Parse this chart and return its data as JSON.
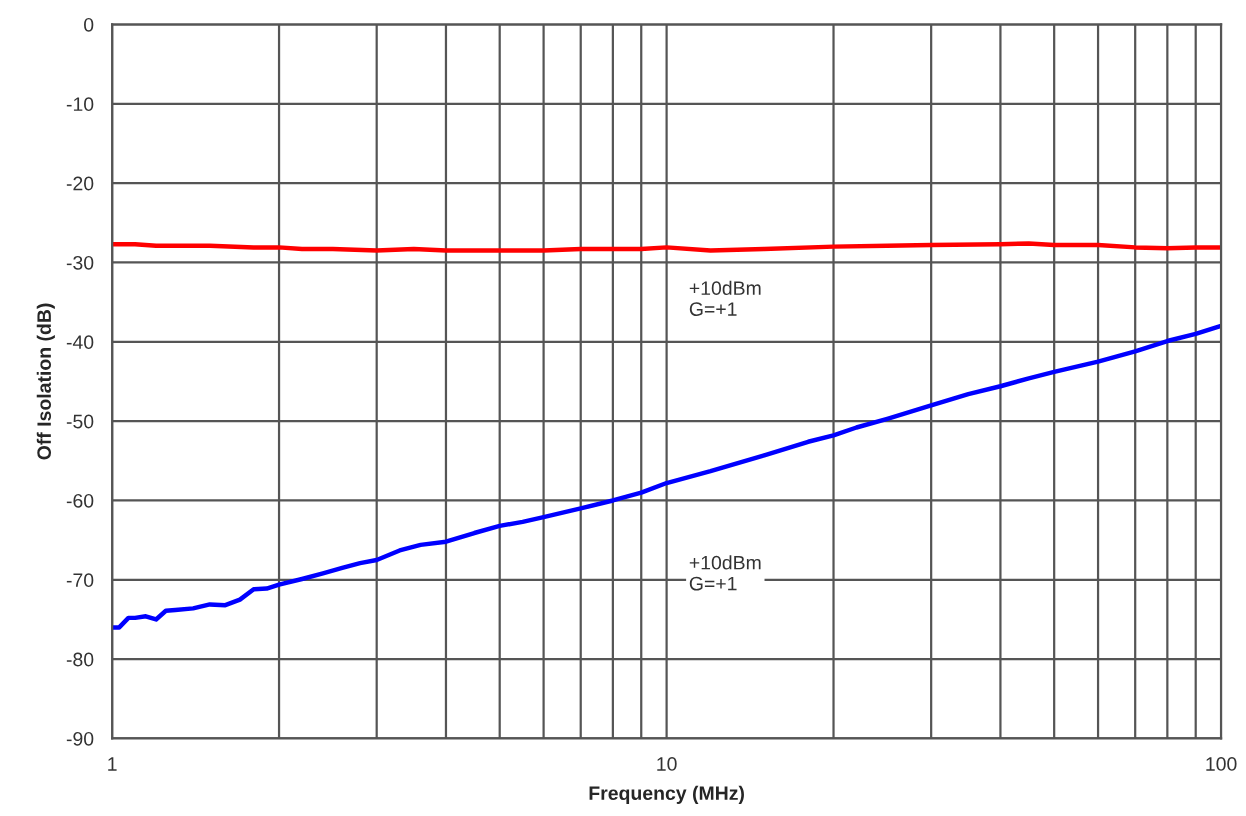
{
  "chart_data": {
    "type": "line",
    "xlabel": "Frequency (MHz)",
    "ylabel": "Off Isolation (dB)",
    "log": "x",
    "xlim": [
      1,
      100
    ],
    "ylim": [
      -90,
      0
    ],
    "xticks": [
      1,
      {
        "value": 2,
        "label": null
      },
      {
        "value": 3,
        "label": null
      },
      {
        "value": 4,
        "label": null
      },
      {
        "value": 5,
        "label": null
      },
      {
        "value": 6,
        "label": null
      },
      {
        "value": 7,
        "label": null
      },
      {
        "value": 8,
        "label": null
      },
      {
        "value": 9,
        "label": null
      },
      10,
      {
        "value": 20,
        "label": null
      },
      {
        "value": 30,
        "label": null
      },
      {
        "value": 40,
        "label": null
      },
      {
        "value": 50,
        "label": null
      },
      {
        "value": 60,
        "label": null
      },
      {
        "value": 70,
        "label": null
      },
      {
        "value": 80,
        "label": null
      },
      {
        "value": 90,
        "label": null
      },
      100
    ],
    "yticks": [
      -90,
      -80,
      -70,
      -60,
      -50,
      -40,
      -30,
      -20,
      -10,
      0
    ],
    "grid": true,
    "marker": "none",
    "line_style": "solid",
    "series": [
      {
        "color": "#ff0000",
        "x": [
          1,
          1.1,
          1.2,
          1.5,
          1.8,
          2,
          2.2,
          2.5,
          3,
          3.5,
          4,
          4.5,
          5,
          6,
          7,
          8,
          9,
          10,
          12,
          15,
          20,
          25,
          30,
          40,
          45,
          50,
          60,
          70,
          80,
          90,
          100
        ],
        "values": [
          -27.7,
          -27.7,
          -27.9,
          -27.9,
          -28.1,
          -28.1,
          -28.3,
          -28.3,
          -28.5,
          -28.3,
          -28.5,
          -28.5,
          -28.5,
          -28.5,
          -28.3,
          -28.3,
          -28.3,
          -28.1,
          -28.5,
          -28.3,
          -28.0,
          -27.9,
          -27.8,
          -27.7,
          -27.6,
          -27.8,
          -27.8,
          -28.1,
          -28.2,
          -28.1,
          -28.1
        ]
      },
      {
        "color": "#0000ff",
        "x": [
          1,
          1.03,
          1.07,
          1.1,
          1.15,
          1.2,
          1.25,
          1.3,
          1.4,
          1.5,
          1.6,
          1.7,
          1.8,
          1.9,
          2,
          2.2,
          2.4,
          2.6,
          2.8,
          3,
          3.3,
          3.6,
          4,
          4.5,
          5,
          5.5,
          6,
          7,
          8,
          9,
          10,
          12,
          15,
          18,
          20,
          22,
          25,
          30,
          35,
          40,
          45,
          50,
          60,
          70,
          80,
          90,
          100
        ],
        "values": [
          -76.0,
          -76.0,
          -74.8,
          -74.8,
          -74.6,
          -75.0,
          -73.9,
          -73.8,
          -73.6,
          -73.1,
          -73.2,
          -72.5,
          -71.2,
          -71.1,
          -70.6,
          -69.9,
          -69.2,
          -68.5,
          -67.9,
          -67.5,
          -66.3,
          -65.6,
          -65.2,
          -64.1,
          -63.2,
          -62.7,
          -62.1,
          -61.0,
          -60.0,
          -59.0,
          -57.8,
          -56.3,
          -54.3,
          -52.6,
          -51.8,
          -50.8,
          -49.7,
          -48.0,
          -46.6,
          -45.6,
          -44.6,
          -43.8,
          -42.5,
          -41.2,
          -39.9,
          -39.0,
          -38.0
        ]
      }
    ],
    "annotations": [
      "+10dBm\nG=+1",
      "+10dBm\nG=+1"
    ]
  }
}
